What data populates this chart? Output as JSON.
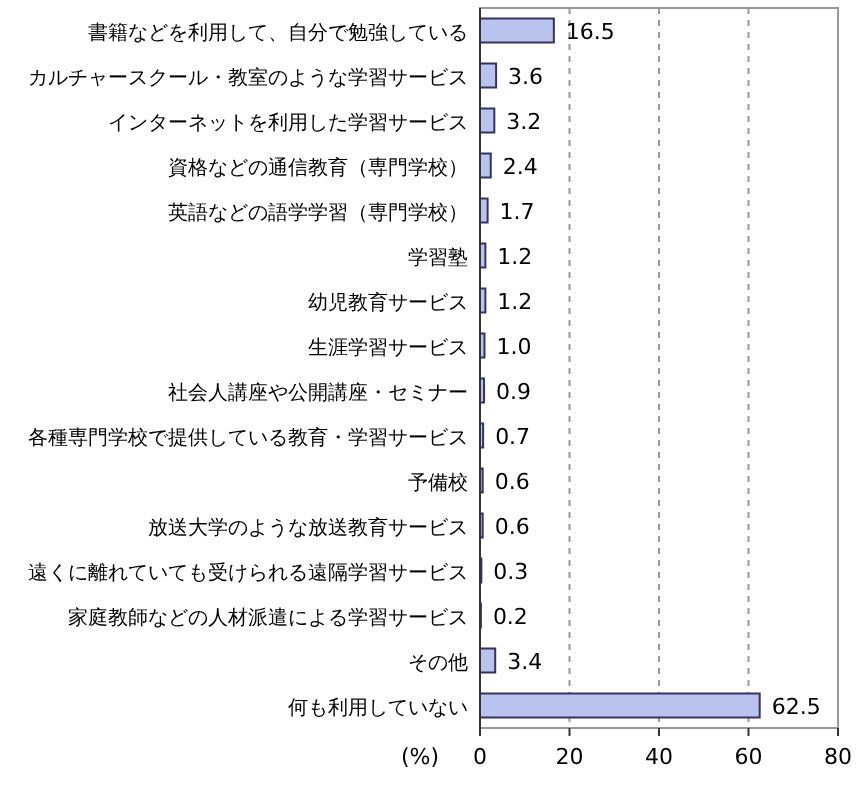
{
  "chart_data": {
    "type": "bar",
    "orientation": "horizontal",
    "xlabel": "(%)",
    "categories": [
      "書籍などを利用して、自分で勉強している",
      "カルチャースクール・教室のような学習サービス",
      "インターネットを利用した学習サービス",
      "資格などの通信教育（専門学校）",
      "英語などの語学学習（専門学校）",
      "学習塾",
      "幼児教育サービス",
      "生涯学習サービス",
      "社会人講座や公開講座・セミナー",
      "各種専門学校で提供している教育・学習サービス",
      "予備校",
      "放送大学のような放送教育サービス",
      "遠くに離れていても受けられる遠隔学習サービス",
      "家庭教師などの人材派遣による学習サービス",
      "その他",
      "何も利用していない"
    ],
    "values": [
      16.5,
      3.6,
      3.2,
      2.4,
      1.7,
      1.2,
      1.2,
      1.0,
      0.9,
      0.7,
      0.6,
      0.6,
      0.3,
      0.2,
      3.4,
      62.5
    ],
    "value_labels": [
      "16.5",
      "3.6",
      "3.2",
      "2.4",
      "1.7",
      "1.2",
      "1.2",
      "1.0",
      "0.9",
      "0.7",
      "0.6",
      "0.6",
      "0.3",
      "0.2",
      "3.4",
      "62.5"
    ],
    "color": "#b9c3ee",
    "xlim": [
      0,
      80
    ],
    "xticks": [
      0,
      20,
      40,
      60,
      80
    ],
    "grid": "x"
  }
}
